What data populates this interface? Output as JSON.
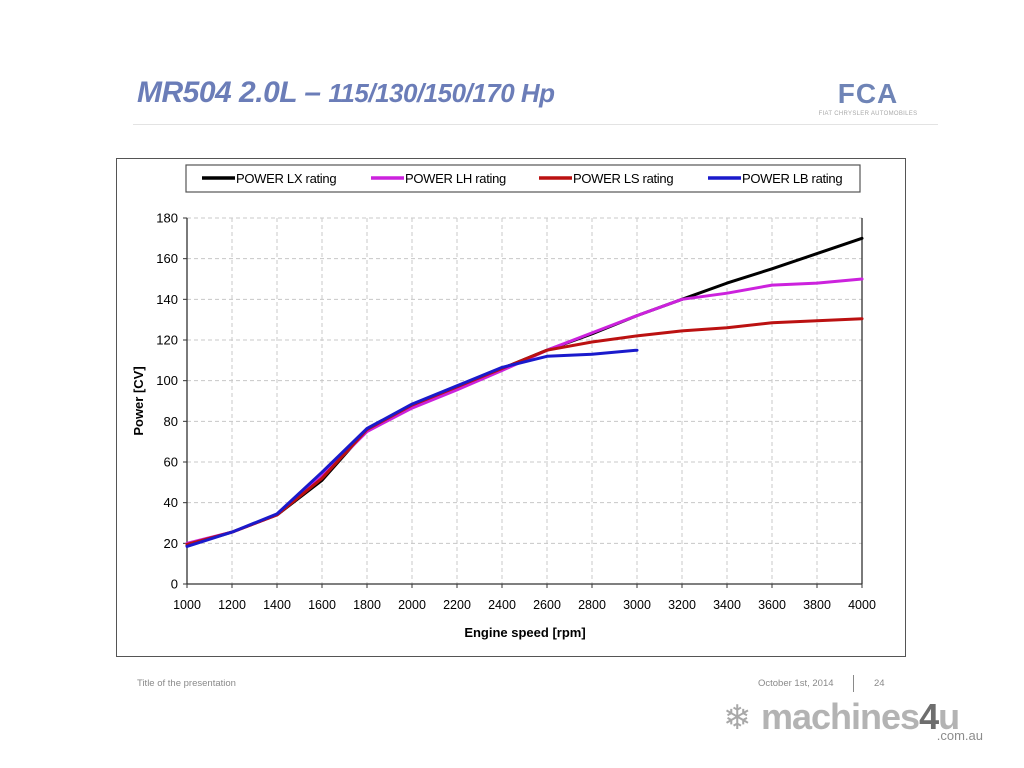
{
  "slide": {
    "title_main": "MR504  2.0L – ",
    "title_sub": "115/130/150/170 Hp",
    "logo": {
      "mark": "FCA",
      "subtitle": "FIAT CHRYSLER AUTOMOBILES"
    },
    "footer": {
      "presentation_title": "Title of the presentation",
      "date": "October 1st, 2014",
      "page_number": "24"
    },
    "watermark": {
      "brand": "machines",
      "brand_digit": "4",
      "brand_suffix": "u",
      "domain": ".com.au",
      "icon": "snowflake-icon"
    }
  },
  "chart_data": {
    "type": "line",
    "title": "",
    "xlabel": "Engine speed [rpm]",
    "ylabel": "Power [CV]",
    "xlim": [
      1000,
      4000
    ],
    "ylim": [
      0,
      180
    ],
    "x_ticks": [
      1000,
      1200,
      1400,
      1600,
      1800,
      2000,
      2200,
      2400,
      2600,
      2800,
      3000,
      3200,
      3400,
      3600,
      3800,
      4000
    ],
    "y_ticks": [
      0,
      20,
      40,
      60,
      80,
      100,
      120,
      140,
      160,
      180
    ],
    "grid": true,
    "legend_position": "top",
    "series": [
      {
        "name": "POWER LX rating",
        "color": "#000000",
        "x": [
          1000,
          1200,
          1400,
          1600,
          1800,
          2000,
          2200,
          2400,
          2600,
          2800,
          3000,
          3200,
          3400,
          3600,
          3800,
          4000
        ],
        "values": [
          19,
          25.5,
          34,
          51,
          76,
          88,
          97,
          106,
          115,
          123,
          132,
          140,
          148,
          155,
          162.5,
          170
        ]
      },
      {
        "name": "POWER LH rating",
        "color": "#cc22dd",
        "x": [
          1000,
          1200,
          1400,
          1600,
          1800,
          2000,
          2200,
          2400,
          2600,
          2800,
          3000,
          3200,
          3400,
          3600,
          3800,
          4000
        ],
        "values": [
          20,
          25.5,
          34,
          53,
          75,
          86.5,
          95.5,
          105,
          115,
          123.5,
          132,
          140,
          143,
          147,
          148,
          150
        ]
      },
      {
        "name": "POWER LS rating",
        "color": "#bb1111",
        "x": [
          1000,
          1200,
          1400,
          1600,
          1800,
          2000,
          2200,
          2400,
          2600,
          2800,
          3000,
          3200,
          3400,
          3600,
          3800,
          4000
        ],
        "values": [
          19.5,
          25.5,
          34,
          52,
          76,
          88,
          97,
          106,
          115,
          119,
          122,
          124.5,
          126,
          128.5,
          129.5,
          130.5
        ]
      },
      {
        "name": "POWER LB rating",
        "color": "#1a1acc",
        "x": [
          1000,
          1200,
          1400,
          1600,
          1800,
          2000,
          2200,
          2400,
          2600,
          2800,
          3000
        ],
        "values": [
          18.5,
          25.5,
          34.5,
          55,
          76.5,
          88.5,
          97.5,
          106.5,
          112,
          113,
          115
        ]
      }
    ]
  }
}
